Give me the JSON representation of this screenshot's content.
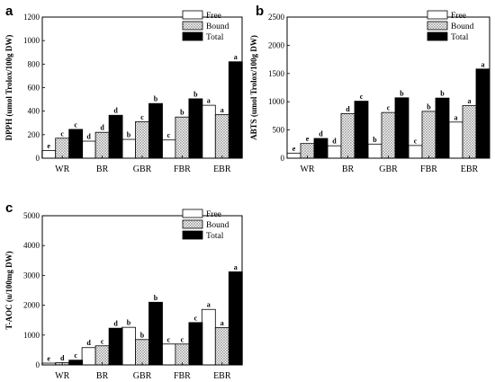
{
  "chart_data": [
    {
      "panel": "a",
      "type": "bar",
      "categories": [
        "WR",
        "BR",
        "GBR",
        "FBR",
        "EBR"
      ],
      "ylabel": "DPPH (umol Trolox/100g DW)",
      "ylim": [
        0,
        1200
      ],
      "yticks": [
        0,
        200,
        400,
        600,
        800,
        1000,
        1200
      ],
      "legend_position": "top-left",
      "series": [
        {
          "name": "Free",
          "values": [
            65,
            145,
            160,
            155,
            450
          ],
          "labels": [
            "e",
            "d",
            "b",
            "c",
            "a"
          ]
        },
        {
          "name": "Bound",
          "values": [
            170,
            220,
            310,
            350,
            370
          ],
          "labels": [
            "c",
            "d",
            "c",
            "b",
            "a"
          ]
        },
        {
          "name": "Total",
          "values": [
            245,
            365,
            465,
            505,
            820
          ],
          "labels": [
            "c",
            "d",
            "b",
            "b",
            "a"
          ]
        }
      ]
    },
    {
      "panel": "b",
      "type": "bar",
      "categories": [
        "WR",
        "BR",
        "GBR",
        "FBR",
        "EBR"
      ],
      "ylabel": "ABTS (umol Trolox/100g DW)",
      "ylim": [
        0,
        2500
      ],
      "yticks": [
        0,
        500,
        1000,
        1500,
        2000,
        2500
      ],
      "legend_position": "top-left",
      "series": [
        {
          "name": "Free",
          "values": [
            90,
            220,
            250,
            225,
            640
          ],
          "labels": [
            "e",
            "d",
            "b",
            "c",
            "a"
          ]
        },
        {
          "name": "Bound",
          "values": [
            260,
            790,
            810,
            830,
            930
          ],
          "labels": [
            "e",
            "d",
            "c",
            "b",
            "a"
          ]
        },
        {
          "name": "Total",
          "values": [
            350,
            1010,
            1070,
            1065,
            1580
          ],
          "labels": [
            "d",
            "c",
            "b",
            "b",
            "a"
          ]
        }
      ]
    },
    {
      "panel": "c",
      "type": "bar",
      "categories": [
        "WR",
        "BR",
        "GBR",
        "FBR",
        "EBR"
      ],
      "ylabel": "T-AOC (u/100mg DW)",
      "ylim": [
        0,
        5000
      ],
      "yticks": [
        0,
        1000,
        2000,
        3000,
        4000,
        5000
      ],
      "legend_position": "top-left",
      "series": [
        {
          "name": "Free",
          "values": [
            60,
            580,
            1260,
            700,
            1860
          ],
          "labels": [
            "e",
            "d",
            "b",
            "c",
            "a"
          ]
        },
        {
          "name": "Bound",
          "values": [
            75,
            640,
            850,
            700,
            1250
          ],
          "labels": [
            "d",
            "c",
            "b",
            "c",
            "a"
          ]
        },
        {
          "name": "Total",
          "values": [
            160,
            1230,
            2100,
            1420,
            3120
          ],
          "labels": [
            "c",
            "d",
            "b",
            "c",
            "a"
          ]
        }
      ]
    }
  ]
}
